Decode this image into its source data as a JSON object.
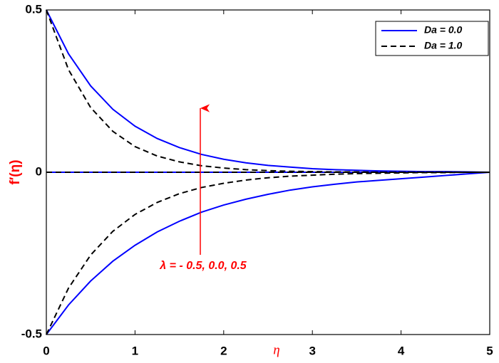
{
  "chart_data": {
    "type": "line",
    "x_label": "η",
    "y_label": "f′(η)",
    "annotation": "λ = - 0.5, 0.0, 0.5",
    "x": [
      0,
      0.25,
      0.5,
      0.75,
      1,
      1.25,
      1.5,
      1.75,
      2,
      2.25,
      2.5,
      2.75,
      3,
      3.25,
      3.5,
      3.75,
      4,
      4.25,
      4.5,
      4.75,
      5
    ],
    "series": [
      {
        "name": "Da = 0.0",
        "color": "#0000ff",
        "dash": false,
        "lines": [
          [
            0.5,
            0.365,
            0.266,
            0.194,
            0.142,
            0.104,
            0.076,
            0.055,
            0.04,
            0.029,
            0.021,
            0.016,
            0.011,
            0.008,
            0.006,
            0.004,
            0.003,
            0.002,
            0.002,
            0.001,
            0
          ],
          [
            0,
            0,
            0,
            0,
            0,
            0,
            0,
            0,
            0,
            0,
            0,
            0,
            0,
            0,
            0,
            0,
            0,
            0,
            0,
            0,
            0
          ],
          [
            -0.5,
            -0.409,
            -0.335,
            -0.274,
            -0.225,
            -0.184,
            -0.151,
            -0.123,
            -0.101,
            -0.083,
            -0.068,
            -0.055,
            -0.045,
            -0.037,
            -0.03,
            -0.025,
            -0.02,
            -0.015,
            -0.01,
            -0.005,
            0
          ]
        ]
      },
      {
        "name": "Da = 1.0",
        "color": "#000000",
        "dash": true,
        "lines": [
          [
            0.5,
            0.316,
            0.199,
            0.126,
            0.079,
            0.05,
            0.032,
            0.02,
            0.013,
            0.008,
            0.005,
            0.003,
            0.002,
            0.001,
            0.001,
            0,
            0,
            0,
            0,
            0,
            0
          ],
          [
            0,
            0,
            0,
            0,
            0,
            0,
            0,
            0,
            0,
            0,
            0,
            0,
            0,
            0,
            0,
            0,
            0,
            0,
            0,
            0,
            0
          ],
          [
            -0.5,
            -0.357,
            -0.255,
            -0.182,
            -0.13,
            -0.093,
            -0.066,
            -0.047,
            -0.034,
            -0.024,
            -0.017,
            -0.012,
            -0.009,
            -0.006,
            -0.004,
            -0.003,
            -0.002,
            -0.001,
            -0.001,
            0,
            0
          ]
        ]
      }
    ],
    "xlim": [
      0,
      5
    ],
    "ylim": [
      -0.5,
      0.5
    ],
    "xticks": [
      0,
      1,
      2,
      3,
      4,
      5
    ],
    "yticks": [
      -0.5,
      0,
      0.5
    ],
    "grid": false,
    "legend": "top-right"
  }
}
